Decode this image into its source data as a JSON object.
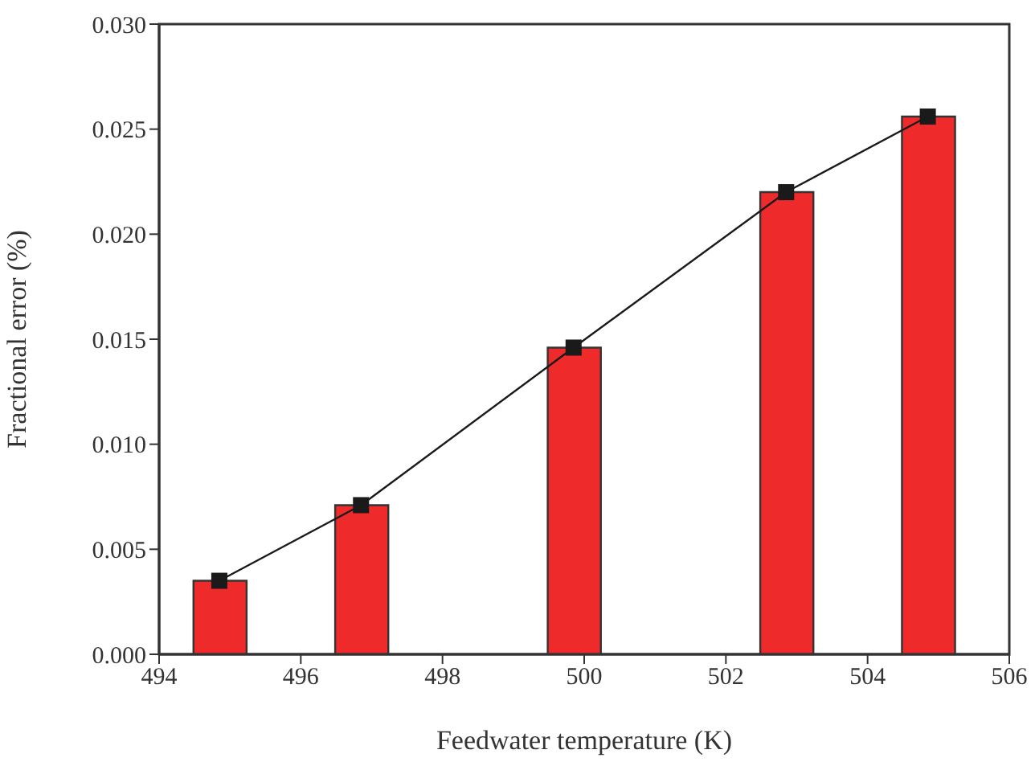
{
  "chart_data": {
    "type": "bar",
    "xlabel": "Feedwater temperature (K)",
    "ylabel": "Fractional error (%)",
    "x": [
      494.85,
      496.85,
      499.85,
      502.85,
      504.85
    ],
    "series": [
      {
        "color": "#ee2a2a",
        "values": [
          0.0035,
          0.0071,
          0.0146,
          0.022,
          0.0256
        ]
      },
      {
        "type": "line",
        "color": "#1a1a1a",
        "values": [
          0.0035,
          0.0071,
          0.0146,
          0.022,
          0.0256
        ],
        "marker": "square"
      }
    ],
    "xlim": [
      494,
      506
    ],
    "xticks": [
      494,
      496,
      498,
      500,
      502,
      504,
      506
    ],
    "ylim": [
      0,
      0.03
    ],
    "yticks": [
      {
        "value": 0,
        "label": "0.000"
      },
      {
        "value": 0.005,
        "label": "0.005"
      },
      {
        "value": 0.01,
        "label": "0.010"
      },
      {
        "value": 0.015,
        "label": "0.015"
      },
      {
        "value": 0.02,
        "label": "0.020"
      },
      {
        "value": 0.025,
        "label": "0.025"
      },
      {
        "value": 0.03,
        "label": "0.030"
      }
    ],
    "grid": false,
    "legend": false
  }
}
